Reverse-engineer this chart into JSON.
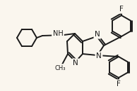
{
  "background_color": "#faf6ee",
  "bond_color": "#1a1a1a",
  "atom_label_color": "#1a1a1a",
  "bond_width": 1.4,
  "figsize": [
    1.94,
    1.3
  ],
  "dpi": 100,
  "xlim": [
    0,
    194
  ],
  "ylim": [
    0,
    130
  ]
}
